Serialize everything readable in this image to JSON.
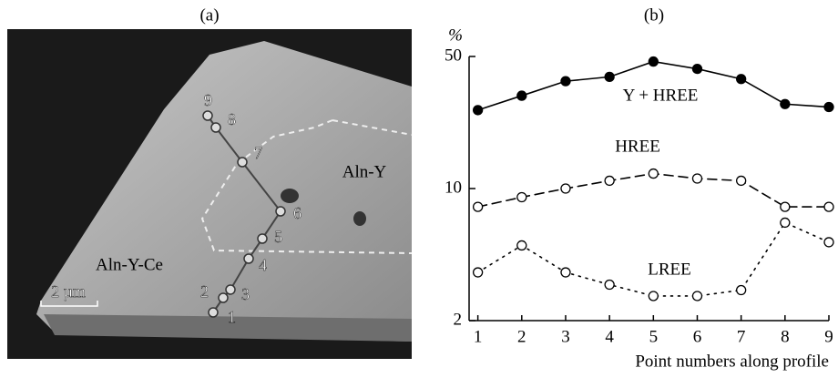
{
  "image_panel": {
    "label": "(a)",
    "regions": [
      "Aln-Y",
      "Aln-Y-Ce"
    ],
    "scale_bar": "2 µm",
    "point_labels": [
      "1",
      "2",
      "3",
      "4",
      "5",
      "6",
      "7",
      "8",
      "9"
    ]
  },
  "chart_data": {
    "type": "line",
    "title": "(b)",
    "y_unit": "%",
    "xlabel": "Point numbers along profile",
    "x": [
      1,
      2,
      3,
      4,
      5,
      6,
      7,
      8,
      9
    ],
    "xlim": [
      0.8,
      9
    ],
    "xticks": [
      1,
      2,
      3,
      4,
      5,
      6,
      7,
      8,
      9
    ],
    "ylim": [
      2,
      50
    ],
    "yticks": [
      2,
      10,
      50
    ],
    "log_y": true,
    "series": [
      {
        "name": "Y + HREE",
        "color": "#000000",
        "line_style": "solid",
        "marker": "filled",
        "values": [
          26,
          31,
          37,
          39,
          47,
          43,
          38,
          28,
          27
        ]
      },
      {
        "name": "HREE",
        "color": "#000000",
        "line_style": "dashed",
        "marker": "open",
        "values": [
          8,
          9,
          10,
          11,
          12,
          11.3,
          11,
          8,
          8
        ]
      },
      {
        "name": "LREE",
        "color": "#000000",
        "line_style": "dotted",
        "marker": "open",
        "values": [
          3.6,
          5,
          3.6,
          3.1,
          2.7,
          2.7,
          2.9,
          6.6,
          5.2
        ]
      }
    ]
  }
}
